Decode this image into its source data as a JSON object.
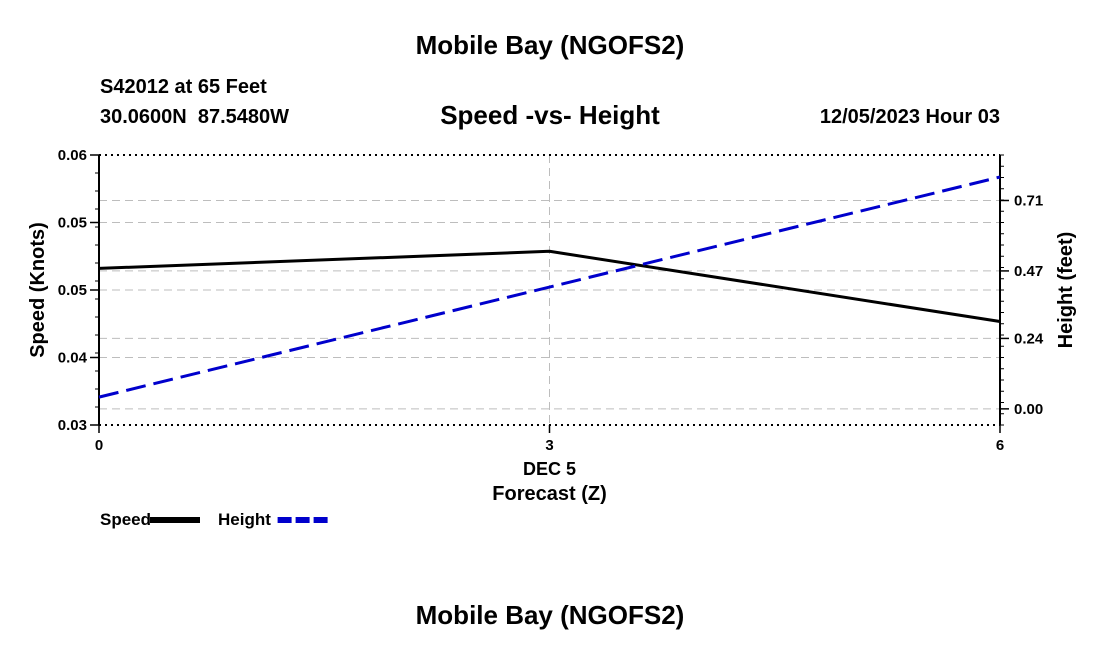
{
  "header": {
    "title": "Mobile Bay (NGOFS2)",
    "station": "S42012 at 65 Feet",
    "coords": "30.0600N  87.5480W",
    "subtitle": "Speed -vs- Height",
    "datetime": "12/05/2023 Hour 03"
  },
  "footer": {
    "title": "Mobile Bay (NGOFS2)"
  },
  "chart_data": {
    "type": "line",
    "title": "Speed -vs- Height",
    "xlabel": "Forecast (Z)",
    "xlabel_date": "DEC 5",
    "ylabel": "Speed (Knots)",
    "y2label": "Height (feet)",
    "x_ticks": [
      0,
      3,
      6
    ],
    "xlim": [
      0,
      6
    ],
    "ylim": [
      0.03,
      0.06
    ],
    "y_ticks": [
      "0.03",
      "0.04",
      "0.05",
      "0.05",
      "0.06"
    ],
    "y_tick_values": [
      0.03,
      0.0375,
      0.045,
      0.0525,
      0.06
    ],
    "y2lim": [
      -0.055,
      0.865
    ],
    "y2_ticks": [
      "0.00",
      "0.24",
      "0.47",
      "0.71"
    ],
    "y2_tick_values": [
      0.0,
      0.24,
      0.47,
      0.71
    ],
    "grid": true,
    "legend_position": "bottom-left",
    "series": [
      {
        "name": "Speed",
        "axis": "left",
        "color": "#000000",
        "style": "solid",
        "x": [
          0,
          3,
          6
        ],
        "y": [
          0.0474,
          0.0493,
          0.0415
        ]
      },
      {
        "name": "Height",
        "axis": "right",
        "color": "#0000cc",
        "style": "dashed",
        "x": [
          0,
          6
        ],
        "y": [
          0.04,
          0.79
        ]
      }
    ]
  }
}
